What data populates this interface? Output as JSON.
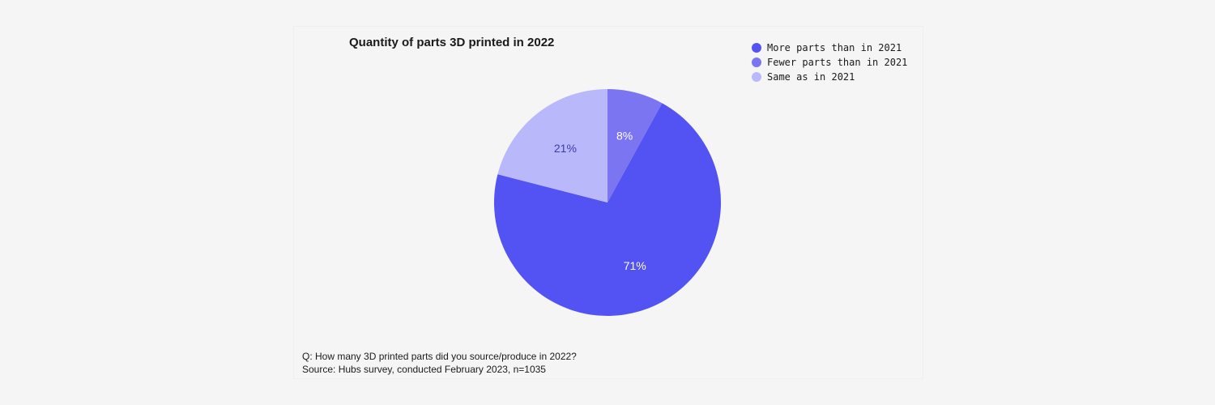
{
  "chart_data": {
    "type": "pie",
    "title": "Quantity of parts 3D printed in 2022",
    "slices": [
      {
        "label": "Fewer parts than in 2021",
        "value": 8,
        "display": "8%",
        "color": "#7b75f2",
        "text_color": "#ffffff"
      },
      {
        "label": "More parts than in 2021",
        "value": 71,
        "display": "71%",
        "color": "#5352f2",
        "text_color": "#ffffff"
      },
      {
        "label": "Same as in 2021",
        "value": 21,
        "display": "21%",
        "color": "#b9b8fa",
        "text_color": "#3b3bb0"
      }
    ],
    "legend": {
      "position": "top-right",
      "items": [
        {
          "label": "More parts than in 2021",
          "color": "#5352f2"
        },
        {
          "label": "Fewer parts than in 2021",
          "color": "#7b75f2"
        },
        {
          "label": "Same as in 2021",
          "color": "#b9b8fa"
        }
      ]
    },
    "start_angle_deg": 0,
    "direction": "clockwise"
  },
  "footnotes": {
    "question": "Q: How many 3D printed parts did you source/produce in 2022?",
    "source": "Source: Hubs survey, conducted February 2023, n=1035"
  }
}
